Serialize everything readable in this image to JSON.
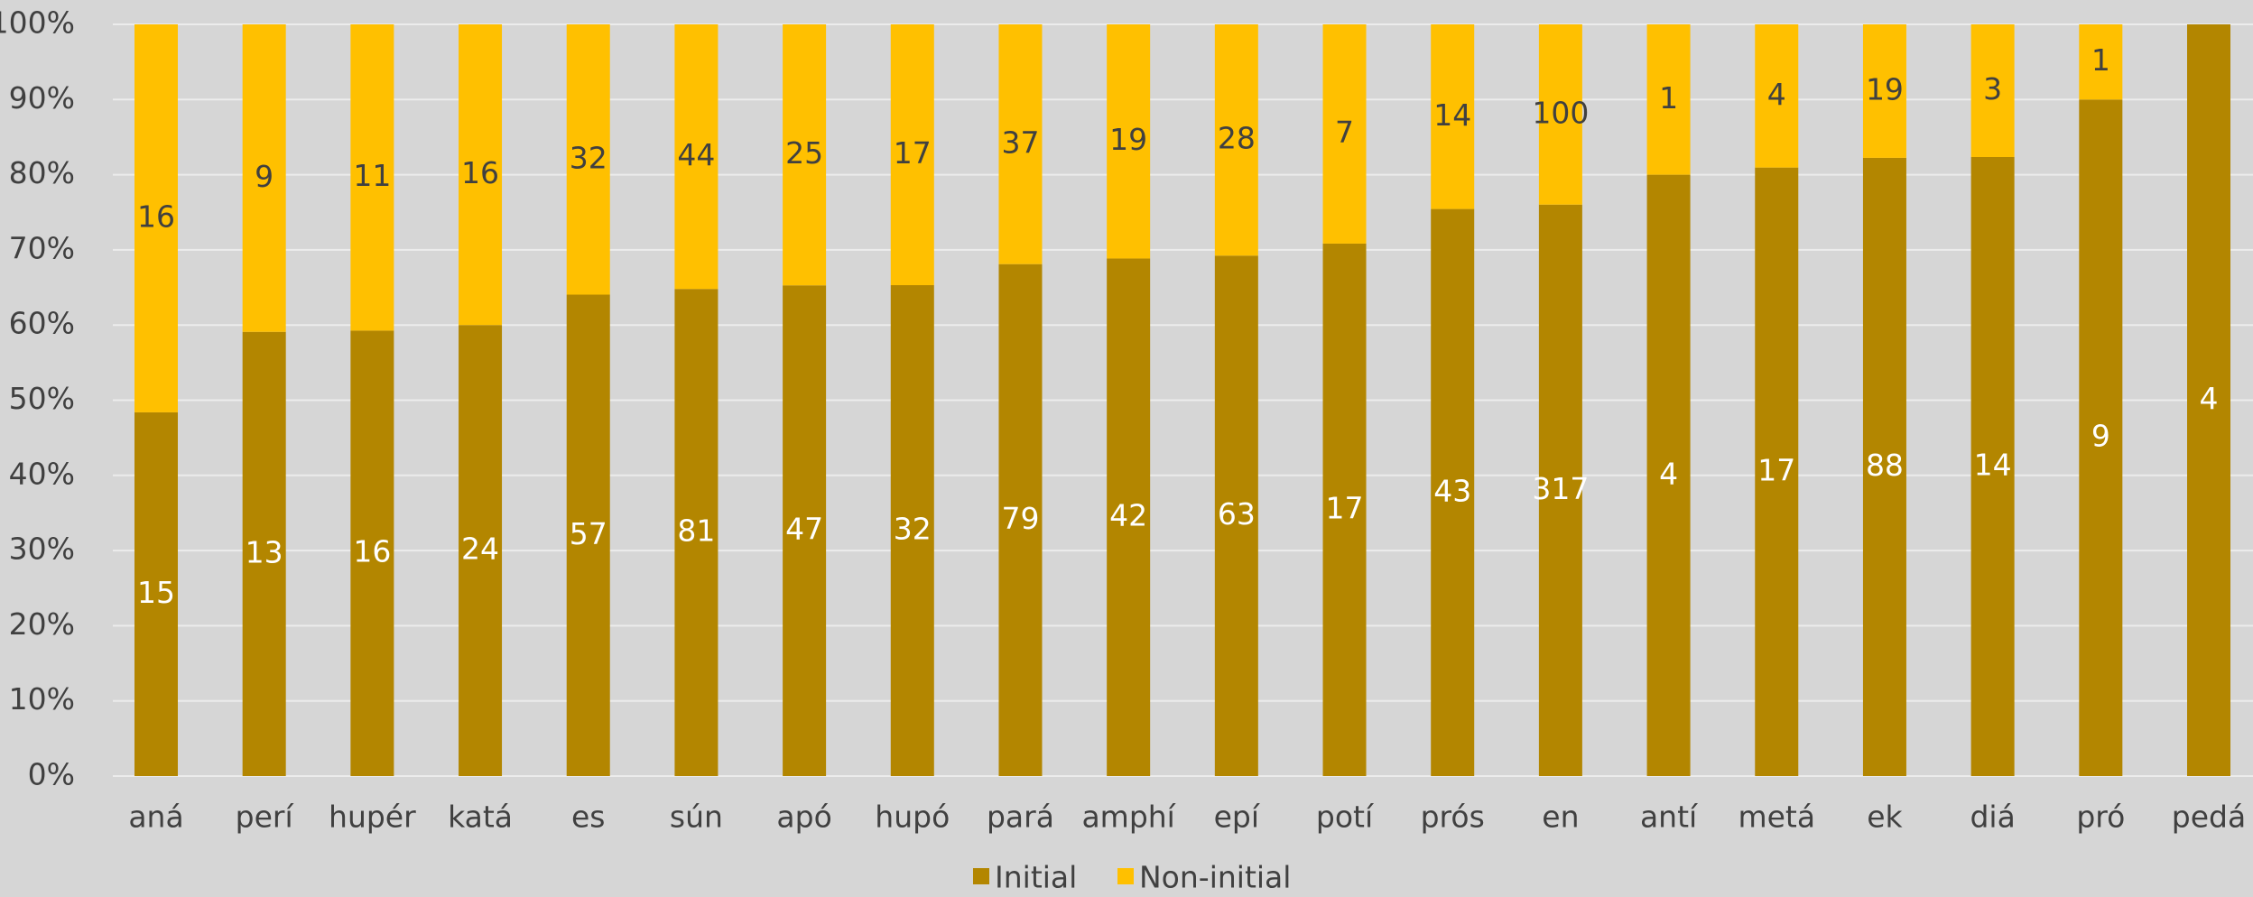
{
  "chart_data": {
    "type": "stacked_percent_bar",
    "categories": [
      "aná",
      "perí",
      "hupér",
      "katá",
      "es",
      "sún",
      "apó",
      "hupó",
      "pará",
      "amphí",
      "epí",
      "potí",
      "prós",
      "en",
      "antí",
      "metá",
      "ek",
      "diá",
      "pró",
      "pedá"
    ],
    "series": [
      {
        "name": "Initial",
        "color": "#b38600",
        "values": [
          15,
          13,
          16,
          24,
          57,
          81,
          47,
          32,
          79,
          42,
          63,
          17,
          43,
          317,
          4,
          17,
          88,
          14,
          9,
          4
        ]
      },
      {
        "name": "Non-initial",
        "color": "#ffc000",
        "values": [
          16,
          9,
          11,
          16,
          32,
          44,
          25,
          17,
          37,
          19,
          28,
          7,
          14,
          100,
          1,
          4,
          19,
          3,
          1,
          0
        ]
      }
    ],
    "ylim": [
      0,
      100
    ],
    "yticks": [
      {
        "value": 0,
        "label": "0%"
      },
      {
        "value": 10,
        "label": "10%"
      },
      {
        "value": 20,
        "label": "20%"
      },
      {
        "value": 30,
        "label": "30%"
      },
      {
        "value": 40,
        "label": "40%"
      },
      {
        "value": 50,
        "label": "50%"
      },
      {
        "value": 60,
        "label": "60%"
      },
      {
        "value": 70,
        "label": "70%"
      },
      {
        "value": 80,
        "label": "80%"
      },
      {
        "value": 90,
        "label": "90%"
      },
      {
        "value": 100,
        "label": "100%"
      }
    ],
    "grid": true,
    "legend": "bottom"
  }
}
